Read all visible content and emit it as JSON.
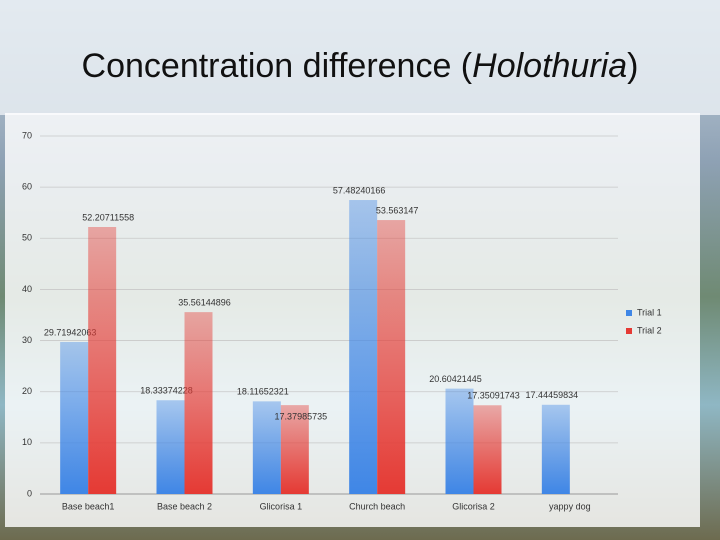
{
  "title_parts": [
    "Concentration difference (",
    "Holothuria",
    ")"
  ],
  "chart_data": {
    "type": "bar",
    "categories": [
      "Base beach1",
      "Base beach 2",
      "Glicorisa 1",
      "Church beach",
      "Glicorisa 2",
      "yappy dog"
    ],
    "series": [
      {
        "name": "Trial 1",
        "color": "#3f86e6",
        "values": [
          29.71942063,
          18.33374228,
          18.11652321,
          57.48240166,
          20.60421445,
          17.44459834
        ]
      },
      {
        "name": "Trial 2",
        "color": "#e53a34",
        "values": [
          52.20711558,
          35.56144896,
          17.37985735,
          53.563147,
          17.35091743,
          null
        ]
      }
    ],
    "ylim": [
      0,
      70
    ],
    "yticks": [
      0,
      10,
      20,
      30,
      40,
      50,
      60,
      70
    ],
    "grid": true,
    "legend": "right"
  }
}
